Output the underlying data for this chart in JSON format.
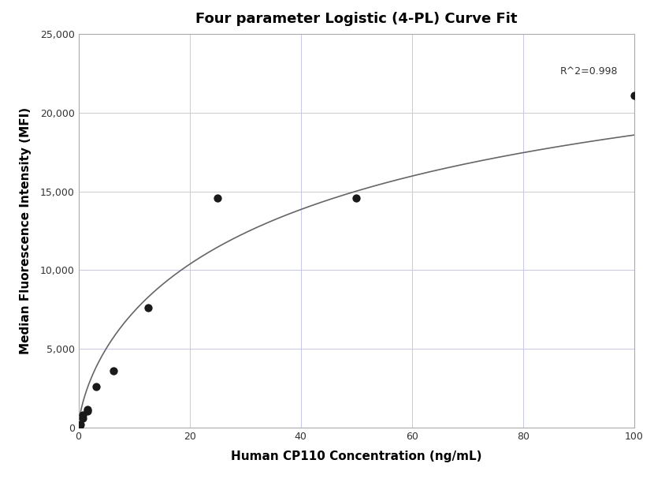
{
  "title": "Four parameter Logistic (4-PL) Curve Fit",
  "xlabel": "Human CP110 Concentration (ng/mL)",
  "ylabel": "Median Fluorescence Intensity (MFI)",
  "scatter_x": [
    0.195,
    0.39,
    0.781,
    0.781,
    1.563,
    1.563,
    3.125,
    6.25,
    12.5,
    25.0,
    50.0,
    100.0
  ],
  "scatter_y": [
    120,
    200,
    600,
    800,
    1050,
    1150,
    2600,
    3600,
    7600,
    14600,
    14600,
    21100
  ],
  "scatter_color": "#1a1a1a",
  "scatter_size": 55,
  "line_color": "#666666",
  "r_squared": "R^2=0.998",
  "xlim": [
    0,
    100
  ],
  "ylim": [
    0,
    25000
  ],
  "xticks": [
    0,
    20,
    40,
    60,
    80,
    100
  ],
  "yticks": [
    0,
    5000,
    10000,
    15000,
    20000,
    25000
  ],
  "grid_color": "#c8c8f0",
  "background_color": "#ffffff",
  "title_fontsize": 13,
  "label_fontsize": 11,
  "tick_fontsize": 9,
  "annotation_fontsize": 9,
  "r2_x": 97,
  "r2_y": 22300
}
